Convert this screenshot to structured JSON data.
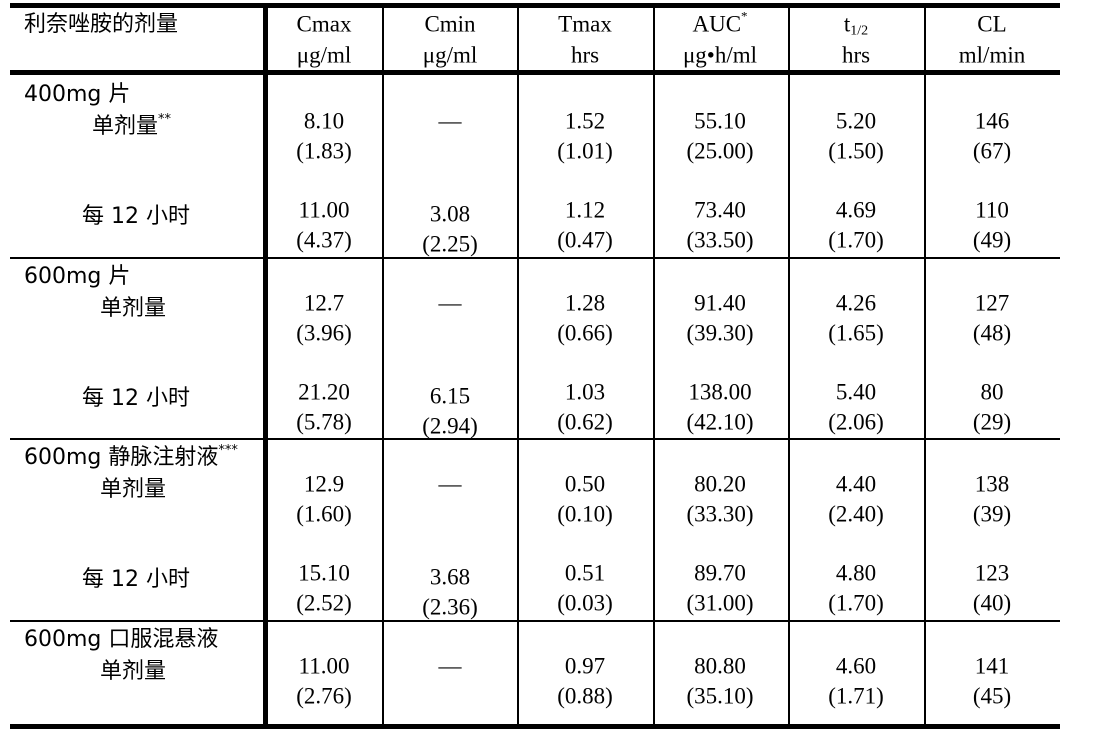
{
  "header": {
    "dose_label": "利奈唑胺的剂量",
    "columns": [
      {
        "name": "Cmax",
        "unit": "μg/ml"
      },
      {
        "name": "Cmin",
        "unit": "μg/ml"
      },
      {
        "name": "Tmax",
        "unit": "hrs"
      },
      {
        "name": "AUC",
        "sup": "*",
        "unit": "μg•h/ml"
      },
      {
        "name": "t",
        "sub": "1/2",
        "unit": "hrs"
      },
      {
        "name": "CL",
        "unit": "ml/min"
      }
    ]
  },
  "groups": [
    {
      "label": "400mg 片",
      "rows": [
        {
          "label": "单剂量",
          "sup": "**",
          "values": [
            [
              "8.10",
              "(1.83)"
            ],
            [
              "—",
              ""
            ],
            [
              "1.52",
              "(1.01)"
            ],
            [
              "55.10",
              "(25.00)"
            ],
            [
              "5.20",
              "(1.50)"
            ],
            [
              "146",
              "(67)"
            ]
          ]
        },
        {
          "label": "每 12 小时",
          "values": [
            [
              "11.00",
              "(4.37)"
            ],
            [
              "3.08",
              "(2.25)"
            ],
            [
              "1.12",
              "(0.47)"
            ],
            [
              "73.40",
              "(33.50)"
            ],
            [
              "4.69",
              "(1.70)"
            ],
            [
              "110",
              "(49)"
            ]
          ]
        }
      ]
    },
    {
      "label": "600mg 片",
      "rows": [
        {
          "label": "单剂量",
          "values": [
            [
              "12.7",
              "(3.96)"
            ],
            [
              "—",
              ""
            ],
            [
              "1.28",
              "(0.66)"
            ],
            [
              "91.40",
              "(39.30)"
            ],
            [
              "4.26",
              "(1.65)"
            ],
            [
              "127",
              "(48)"
            ]
          ]
        },
        {
          "label": "每 12 小时",
          "values": [
            [
              "21.20",
              "(5.78)"
            ],
            [
              "6.15",
              "(2.94)"
            ],
            [
              "1.03",
              "(0.62)"
            ],
            [
              "138.00",
              "(42.10)"
            ],
            [
              "5.40",
              "(2.06)"
            ],
            [
              "80",
              "(29)"
            ]
          ]
        }
      ]
    },
    {
      "label": "600mg 静脉注射液",
      "label_sup": "***",
      "rows": [
        {
          "label": "单剂量",
          "values": [
            [
              "12.9",
              "(1.60)"
            ],
            [
              "—",
              ""
            ],
            [
              "0.50",
              "(0.10)"
            ],
            [
              "80.20",
              "(33.30)"
            ],
            [
              "4.40",
              "(2.40)"
            ],
            [
              "138",
              "(39)"
            ]
          ]
        },
        {
          "label": "每 12 小时",
          "values": [
            [
              "15.10",
              "(2.52)"
            ],
            [
              "3.68",
              "(2.36)"
            ],
            [
              "0.51",
              "(0.03)"
            ],
            [
              "89.70",
              "(31.00)"
            ],
            [
              "4.80",
              "(1.70)"
            ],
            [
              "123",
              "(40)"
            ]
          ]
        }
      ]
    },
    {
      "label": "600mg 口服混悬液",
      "rows": [
        {
          "label": "单剂量",
          "values": [
            [
              "11.00",
              "(2.76)"
            ],
            [
              "—",
              ""
            ],
            [
              "0.97",
              "(0.88)"
            ],
            [
              "80.80",
              "(35.10)"
            ],
            [
              "4.60",
              "(1.71)"
            ],
            [
              "141",
              "(45)"
            ]
          ]
        }
      ]
    }
  ]
}
